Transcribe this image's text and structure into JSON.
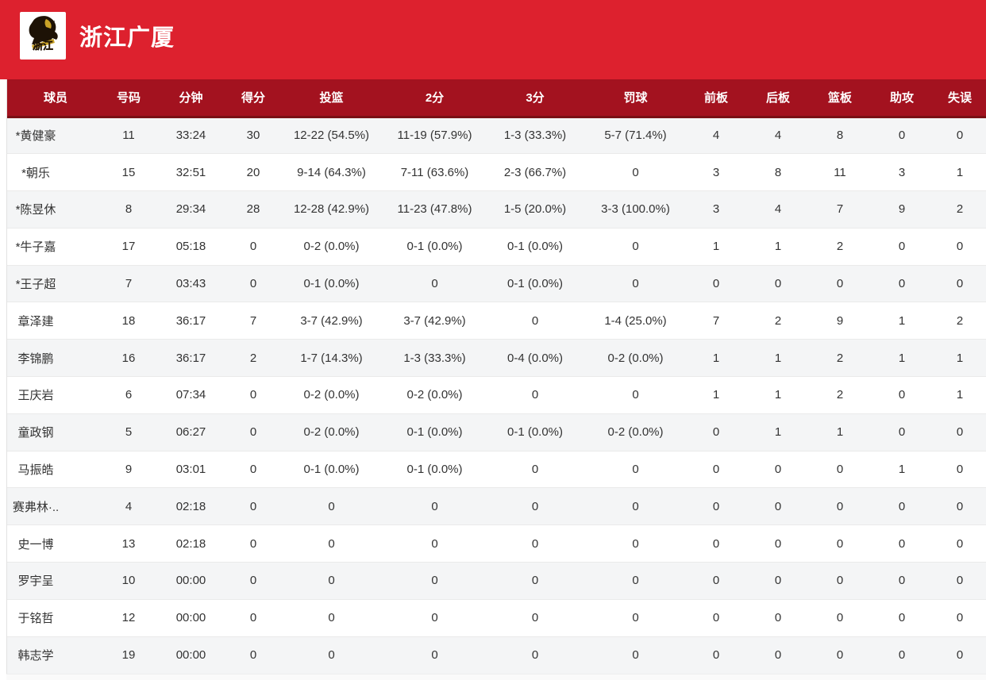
{
  "colors": {
    "top_band": "#dd212e",
    "table_header_bg": "#a3121f",
    "table_header_border": "#7a1015",
    "row_alt_bg": "#f4f5f6",
    "row_bg": "#ffffff",
    "text": "#333333",
    "logo_gold": "#c9a227"
  },
  "header": {
    "team_name": "浙江广厦",
    "logo_text": "浙江"
  },
  "table": {
    "columns": [
      "球员",
      "号码",
      "分钟",
      "得分",
      "投篮",
      "2分",
      "3分",
      "罚球",
      "前板",
      "后板",
      "篮板",
      "助攻",
      "失误"
    ],
    "rows": [
      [
        "*黄健豪",
        "11",
        "33:24",
        "30",
        "12-22 (54.5%)",
        "11-19 (57.9%)",
        "1-3 (33.3%)",
        "5-7 (71.4%)",
        "4",
        "4",
        "8",
        "0",
        "0"
      ],
      [
        "*朝乐",
        "15",
        "32:51",
        "20",
        "9-14 (64.3%)",
        "7-11 (63.6%)",
        "2-3 (66.7%)",
        "0",
        "3",
        "8",
        "11",
        "3",
        "1"
      ],
      [
        "*陈昱休",
        "8",
        "29:34",
        "28",
        "12-28 (42.9%)",
        "11-23 (47.8%)",
        "1-5 (20.0%)",
        "3-3 (100.0%)",
        "3",
        "4",
        "7",
        "9",
        "2"
      ],
      [
        "*牛子嘉",
        "17",
        "05:18",
        "0",
        "0-2 (0.0%)",
        "0-1 (0.0%)",
        "0-1 (0.0%)",
        "0",
        "1",
        "1",
        "2",
        "0",
        "0"
      ],
      [
        "*王子超",
        "7",
        "03:43",
        "0",
        "0-1 (0.0%)",
        "0",
        "0-1 (0.0%)",
        "0",
        "0",
        "0",
        "0",
        "0",
        "0"
      ],
      [
        "章泽建",
        "18",
        "36:17",
        "7",
        "3-7 (42.9%)",
        "3-7 (42.9%)",
        "0",
        "1-4 (25.0%)",
        "7",
        "2",
        "9",
        "1",
        "2"
      ],
      [
        "李锦鹏",
        "16",
        "36:17",
        "2",
        "1-7 (14.3%)",
        "1-3 (33.3%)",
        "0-4 (0.0%)",
        "0-2 (0.0%)",
        "1",
        "1",
        "2",
        "1",
        "1"
      ],
      [
        "王庆岩",
        "6",
        "07:34",
        "0",
        "0-2 (0.0%)",
        "0-2 (0.0%)",
        "0",
        "0",
        "1",
        "1",
        "2",
        "0",
        "1"
      ],
      [
        "童政钢",
        "5",
        "06:27",
        "0",
        "0-2 (0.0%)",
        "0-1 (0.0%)",
        "0-1 (0.0%)",
        "0-2 (0.0%)",
        "0",
        "1",
        "1",
        "0",
        "0"
      ],
      [
        "马振皓",
        "9",
        "03:01",
        "0",
        "0-1 (0.0%)",
        "0-1 (0.0%)",
        "0",
        "0",
        "0",
        "0",
        "0",
        "1",
        "0"
      ],
      [
        "赛弗林·..",
        "4",
        "02:18",
        "0",
        "0",
        "0",
        "0",
        "0",
        "0",
        "0",
        "0",
        "0",
        "0"
      ],
      [
        "史一博",
        "13",
        "02:18",
        "0",
        "0",
        "0",
        "0",
        "0",
        "0",
        "0",
        "0",
        "0",
        "0"
      ],
      [
        "罗宇呈",
        "10",
        "00:00",
        "0",
        "0",
        "0",
        "0",
        "0",
        "0",
        "0",
        "0",
        "0",
        "0"
      ],
      [
        "于铭哲",
        "12",
        "00:00",
        "0",
        "0",
        "0",
        "0",
        "0",
        "0",
        "0",
        "0",
        "0",
        "0"
      ],
      [
        "韩志学",
        "19",
        "00:00",
        "0",
        "0",
        "0",
        "0",
        "0",
        "0",
        "0",
        "0",
        "0",
        "0"
      ]
    ]
  }
}
